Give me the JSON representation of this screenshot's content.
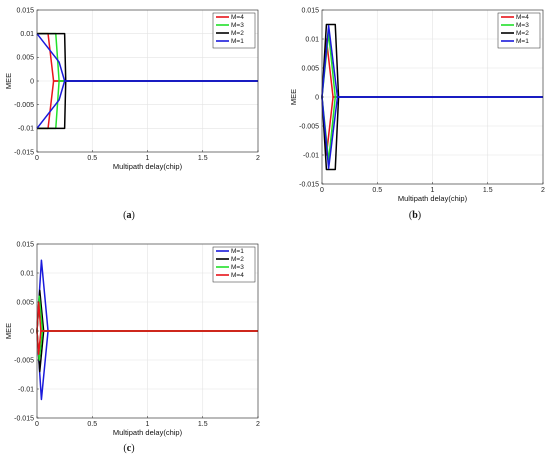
{
  "chart_data": [
    {
      "type": "line",
      "caption_letter": "a",
      "xlabel": "Multipath delay(chip)",
      "ylabel": "MEE",
      "xlim": [
        0,
        2
      ],
      "ylim": [
        -0.015,
        0.015
      ],
      "xticks": [
        "0",
        "0.5",
        "1",
        "1.5",
        "2"
      ],
      "yticks": [
        "0.015",
        "0.01",
        "0.005",
        "0",
        "-0.005",
        "-0.01",
        "-0.015"
      ],
      "grid": true,
      "legend_position": "top-right",
      "series": [
        {
          "name": "M=4",
          "color": "#e8141a",
          "upper": [
            [
              0,
              0.01
            ],
            [
              0.1,
              0.01
            ],
            [
              0.15,
              0
            ],
            [
              2,
              0
            ]
          ],
          "lower": [
            [
              0,
              -0.01
            ],
            [
              0.1,
              -0.01
            ],
            [
              0.15,
              0
            ],
            [
              2,
              0
            ]
          ]
        },
        {
          "name": "M=3",
          "color": "#22e02a",
          "upper": [
            [
              0,
              0.01
            ],
            [
              0.17,
              0.01
            ],
            [
              0.2,
              0
            ],
            [
              2,
              0
            ]
          ],
          "lower": [
            [
              0,
              -0.01
            ],
            [
              0.17,
              -0.01
            ],
            [
              0.2,
              0
            ],
            [
              2,
              0
            ]
          ]
        },
        {
          "name": "M=2",
          "color": "#000000",
          "upper": [
            [
              0,
              0.01
            ],
            [
              0.25,
              0.01
            ],
            [
              0.26,
              0
            ],
            [
              2,
              0
            ]
          ],
          "lower": [
            [
              0,
              -0.01
            ],
            [
              0.25,
              -0.01
            ],
            [
              0.26,
              0
            ],
            [
              2,
              0
            ]
          ]
        },
        {
          "name": "M=1",
          "color": "#1a1adb",
          "upper": [
            [
              0,
              0.01
            ],
            [
              0.2,
              0.004
            ],
            [
              0.25,
              0
            ],
            [
              2,
              0
            ]
          ],
          "lower": [
            [
              0,
              -0.01
            ],
            [
              0.2,
              -0.004
            ],
            [
              0.25,
              0
            ],
            [
              2,
              0
            ]
          ]
        }
      ]
    },
    {
      "type": "line",
      "caption_letter": "b",
      "xlabel": "Multipath delay(chip)",
      "ylabel": "MEE",
      "xlim": [
        0,
        2
      ],
      "ylim": [
        -0.015,
        0.015
      ],
      "xticks": [
        "0",
        "0.5",
        "1",
        "1.5",
        "2"
      ],
      "yticks": [
        "0.015",
        "0.01",
        "0.005",
        "0",
        "-0.005",
        "-0.01",
        "-0.015"
      ],
      "grid": true,
      "legend_position": "top-right",
      "series": [
        {
          "name": "M=4",
          "color": "#e8141a",
          "upper": [
            [
              0,
              0
            ],
            [
              0.04,
              0.01
            ],
            [
              0.1,
              0
            ],
            [
              2,
              0
            ]
          ],
          "lower": [
            [
              0,
              0
            ],
            [
              0.04,
              -0.01
            ],
            [
              0.1,
              0
            ],
            [
              2,
              0
            ]
          ]
        },
        {
          "name": "M=3",
          "color": "#22e02a",
          "upper": [
            [
              0,
              0
            ],
            [
              0.06,
              0.011
            ],
            [
              0.12,
              0
            ],
            [
              2,
              0
            ]
          ],
          "lower": [
            [
              0,
              0
            ],
            [
              0.06,
              -0.011
            ],
            [
              0.12,
              0
            ],
            [
              2,
              0
            ]
          ]
        },
        {
          "name": "M=2",
          "color": "#000000",
          "upper": [
            [
              0,
              0
            ],
            [
              0.04,
              0.0125
            ],
            [
              0.12,
              0.0125
            ],
            [
              0.15,
              0
            ],
            [
              2,
              0
            ]
          ],
          "lower": [
            [
              0,
              0
            ],
            [
              0.04,
              -0.0125
            ],
            [
              0.12,
              -0.0125
            ],
            [
              0.15,
              0
            ],
            [
              2,
              0
            ]
          ]
        },
        {
          "name": "M=1",
          "color": "#1a1adb",
          "upper": [
            [
              0,
              0
            ],
            [
              0.06,
              0.0123
            ],
            [
              0.14,
              0
            ],
            [
              2,
              0
            ]
          ],
          "lower": [
            [
              0,
              0
            ],
            [
              0.06,
              -0.0123
            ],
            [
              0.14,
              0
            ],
            [
              2,
              0
            ]
          ]
        }
      ]
    },
    {
      "type": "line",
      "caption_letter": "c",
      "xlabel": "Multipath delay(chip)",
      "ylabel": "MEE",
      "xlim": [
        0,
        2
      ],
      "ylim": [
        -0.015,
        0.015
      ],
      "xticks": [
        "0",
        "0.5",
        "1",
        "1.5",
        "2"
      ],
      "yticks": [
        "0.015",
        "0.01",
        "0.005",
        "0",
        "-0.005",
        "-0.01",
        "-0.015"
      ],
      "grid": true,
      "legend_position": "top-right",
      "series": [
        {
          "name": "M=1",
          "color": "#1a1adb",
          "upper": [
            [
              0,
              0
            ],
            [
              0.04,
              0.0122
            ],
            [
              0.1,
              0
            ],
            [
              2,
              0
            ]
          ],
          "lower": [
            [
              0,
              0
            ],
            [
              0.04,
              -0.0118
            ],
            [
              0.1,
              0
            ],
            [
              2,
              0
            ]
          ]
        },
        {
          "name": "M=2",
          "color": "#000000",
          "upper": [
            [
              0,
              0
            ],
            [
              0.025,
              0.007
            ],
            [
              0.06,
              0
            ],
            [
              2,
              0
            ]
          ],
          "lower": [
            [
              0,
              0
            ],
            [
              0.025,
              -0.007
            ],
            [
              0.06,
              0
            ],
            [
              2,
              0
            ]
          ]
        },
        {
          "name": "M=3",
          "color": "#22e02a",
          "upper": [
            [
              0,
              0
            ],
            [
              0.02,
              0.006
            ],
            [
              0.05,
              0
            ],
            [
              2,
              0
            ]
          ],
          "lower": [
            [
              0,
              0
            ],
            [
              0.02,
              -0.005
            ],
            [
              0.05,
              0
            ],
            [
              2,
              0
            ]
          ]
        },
        {
          "name": "M=4",
          "color": "#e8141a",
          "upper": [
            [
              0,
              0
            ],
            [
              0.015,
              0.005
            ],
            [
              0.035,
              0
            ],
            [
              2,
              0
            ]
          ],
          "lower": [
            [
              0,
              0
            ],
            [
              0.015,
              -0.004
            ],
            [
              0.035,
              0
            ],
            [
              2,
              0
            ]
          ]
        }
      ]
    }
  ]
}
